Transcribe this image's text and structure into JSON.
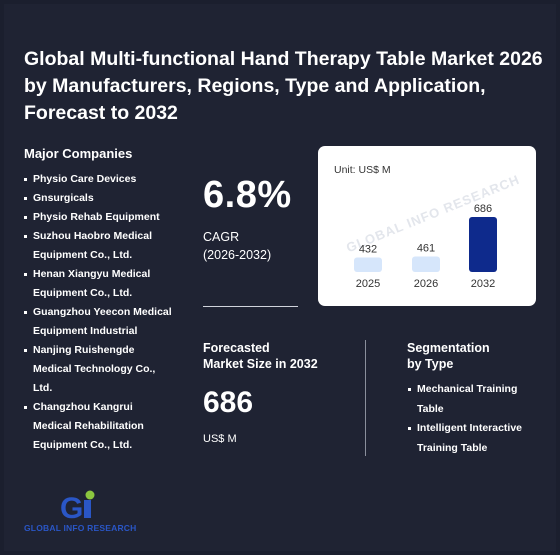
{
  "title": "Global Multi-functional Hand Therapy Table Market 2026 by Manufacturers, Regions, Type and Application, Forecast to 2032",
  "companies": {
    "heading": "Major Companies",
    "items": [
      "Physio Care Devices",
      "Gnsurgicals",
      "Physio Rehab Equipment",
      "Suzhou Haobro Medical Equipment Co., Ltd.",
      "Henan Xiangyu Medical Equipment Co., Ltd.",
      "Guangzhou Yeecon Medical Equipment Industrial",
      "Nanjing Ruishengde Medical Technology Co., Ltd.",
      "Changzhou Kangrui Medical Rehabilitation Equipment Co., Ltd."
    ]
  },
  "cagr": {
    "value": "6.8%",
    "label_line1": "CAGR",
    "label_line2": "(2026-2032)"
  },
  "chart_data": {
    "type": "bar",
    "unit_label": "Unit: US$ M",
    "categories": [
      "2025",
      "2026",
      "2032"
    ],
    "values": [
      432,
      461,
      686
    ],
    "bar_colors": [
      "#d6e6fb",
      "#d6e6fb",
      "#0e2a8c"
    ],
    "watermark": "GLOBAL INFO RESEARCH"
  },
  "forecast": {
    "heading_line1": "Forecasted",
    "heading_line2": "Market Size in 2032",
    "value": "686",
    "unit": "US$ M"
  },
  "segmentation": {
    "heading_line1": "Segmentation",
    "heading_line2": "by Type",
    "items": [
      "Mechanical Training Table",
      "Intelligent Interactive Training Table"
    ]
  },
  "logo": {
    "mark": "Gi",
    "text": "GLOBAL INFO RESEARCH"
  },
  "colors": {
    "background": "#1f2333",
    "accent": "#0e2a8c",
    "light_bar": "#d6e6fb",
    "logo_blue": "#2a56c6",
    "logo_green": "#8cc63f"
  }
}
